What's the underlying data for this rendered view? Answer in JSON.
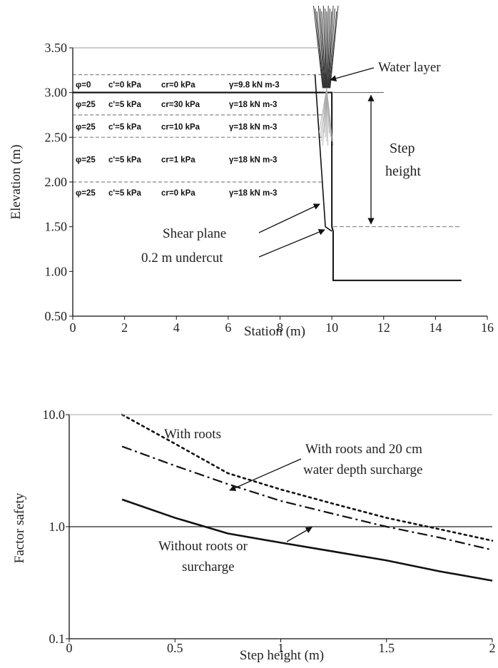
{
  "chart_data": [
    {
      "type": "line",
      "title": "",
      "xlabel": "Station (m)",
      "ylabel": "Elevation (m)",
      "xlim": [
        0,
        16
      ],
      "ylim": [
        0.5,
        3.5
      ],
      "x_ticks": [
        "0",
        "2",
        "4",
        "6",
        "8",
        "10",
        "12",
        "14",
        "16"
      ],
      "y_ticks": [
        "0.50",
        "1.00",
        "1.50",
        "2.00",
        "2.50",
        "3.00",
        "3.50"
      ],
      "layer_boundaries": [
        3.2,
        3.0,
        2.75,
        2.5,
        2.0
      ],
      "layers": [
        {
          "label": "φ=0   c'=0 kPa   cr=0 kPa   γ=9.8 kN m-3",
          "phi": "φ=0",
          "c": "c'=0 kPa",
          "cr": "cr=0 kPa",
          "gamma": "γ=9.8 kN m-3",
          "y": 3.09
        },
        {
          "label": "φ=25  c'=5 kPa   cr=30 kPa  γ=18 kN m-3",
          "phi": "φ=25",
          "c": "c'=5 kPa",
          "cr": "cr=30 kPa",
          "gamma": "γ=18 kN m-3",
          "y": 2.87
        },
        {
          "label": "φ=25  c'=5 kPa   cr=10 kPa  γ=18 kN m-3",
          "phi": "φ=25",
          "c": "c'=5 kPa",
          "cr": "cr=10 kPa",
          "gamma": "γ=18 kN m-3",
          "y": 2.62
        },
        {
          "label": "φ=25  c'=5 kPa   cr=1 kPa   γ=18 kN m-3",
          "phi": "φ=25",
          "c": "c'=5 kPa",
          "cr": "cr=1 kPa",
          "gamma": "γ=18 kN m-3",
          "y": 2.25
        },
        {
          "label": "φ=25  c'=5 kPa   cr=0 kPa   γ=18 kN m-3",
          "phi": "φ=25",
          "c": "c'=5 kPa",
          "cr": "cr=0 kPa",
          "gamma": "γ=18 kN m-3",
          "y": 1.88
        }
      ],
      "profile": {
        "x": [
          0,
          10,
          10,
          10.05,
          10.05,
          15
        ],
        "y": [
          3.0,
          3.0,
          1.5,
          1.45,
          0.9,
          0.9
        ]
      },
      "shear_plane": {
        "x": [
          9.35,
          9.75,
          10.0
        ],
        "y": [
          3.2,
          1.5,
          1.45
        ]
      },
      "step_height_range": [
        1.5,
        3.0
      ],
      "annotations": {
        "water_layer": "Water layer",
        "step_height_1": "Step",
        "step_height_2": "height",
        "shear_plane": "Shear plane",
        "undercut": "0.2 m undercut"
      }
    },
    {
      "type": "line",
      "title": "",
      "xlabel": "Step height (m)",
      "ylabel": "Factor safety",
      "xlim": [
        0,
        2
      ],
      "ylim": [
        0.1,
        10
      ],
      "y_scale": "log",
      "x_ticks": [
        "0",
        "0.5",
        "1",
        "1.5",
        "2"
      ],
      "y_ticks": [
        "0.1",
        "1.0",
        "10.0"
      ],
      "reference_line": 1.0,
      "x": [
        0.25,
        0.5,
        0.75,
        1.0,
        1.25,
        1.5,
        1.75,
        2.0
      ],
      "series": [
        {
          "name": "With roots",
          "style": "dotted",
          "values": [
            10.0,
            5.5,
            3.0,
            2.15,
            1.6,
            1.2,
            0.95,
            0.75
          ]
        },
        {
          "name": "With roots and 20 cm water depth surcharge",
          "style": "dashdot",
          "values": [
            5.2,
            3.5,
            2.4,
            1.7,
            1.3,
            1.0,
            0.8,
            0.62
          ]
        },
        {
          "name": "Without roots or surcharge",
          "style": "solid",
          "values": [
            1.75,
            1.2,
            0.87,
            0.72,
            0.6,
            0.5,
            0.4,
            0.33
          ]
        }
      ],
      "annotations": {
        "with_roots": "With roots",
        "surcharge_1": "With roots and 20 cm",
        "surcharge_2": "water depth surcharge",
        "without_1": "Without roots or",
        "without_2": "surcharge"
      }
    }
  ]
}
